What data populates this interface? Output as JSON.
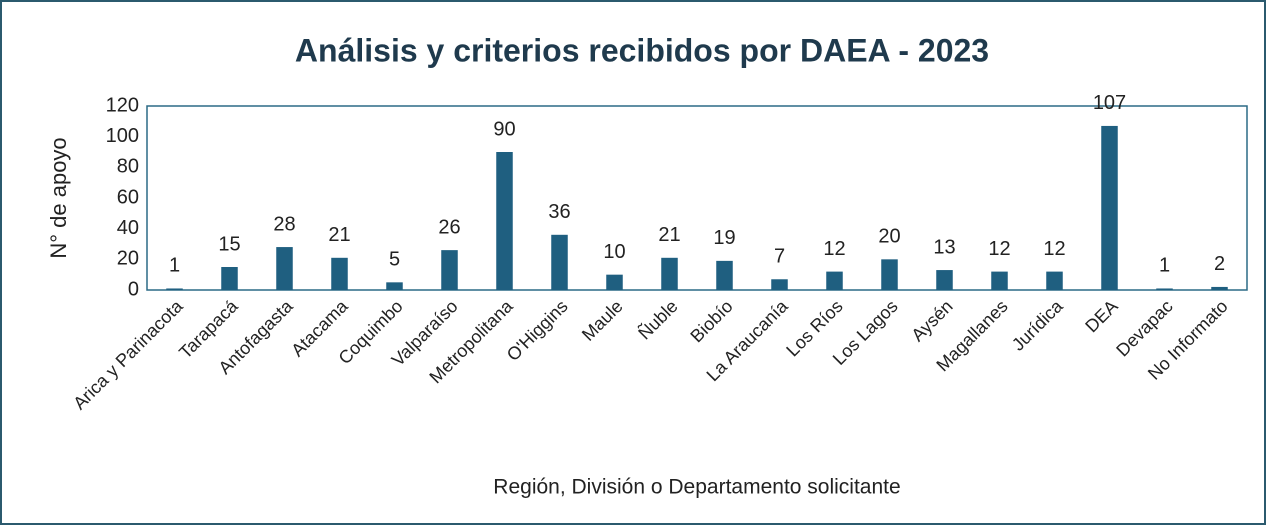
{
  "chart_data": {
    "type": "bar",
    "title": "Análisis y criterios recibidos por DAEA - 2023",
    "x_label": "Región, División o Departamento solicitante",
    "y_label": "N° de apoyo",
    "categories": [
      "Arica y Parinacota",
      "Tarapacá",
      "Antofagasta",
      "Atacama",
      "Coquimbo",
      "Valparaíso",
      "Metropolitana",
      "O'Higgins",
      "Maule",
      "Ñuble",
      "Biobío",
      "La Araucanía",
      "Los Ríos",
      "Los Lagos",
      "Aysén",
      "Magallanes",
      "Jurídica",
      "DEA",
      "Devapac",
      "No Informato"
    ],
    "values": [
      1,
      15,
      28,
      21,
      5,
      26,
      90,
      36,
      10,
      21,
      19,
      7,
      12,
      20,
      13,
      12,
      12,
      107,
      1,
      2
    ],
    "color": "#1f5f80",
    "ylim": [
      0,
      120
    ],
    "yticks": [
      0,
      20,
      40,
      60,
      80,
      100,
      120
    ],
    "grid": false
  }
}
